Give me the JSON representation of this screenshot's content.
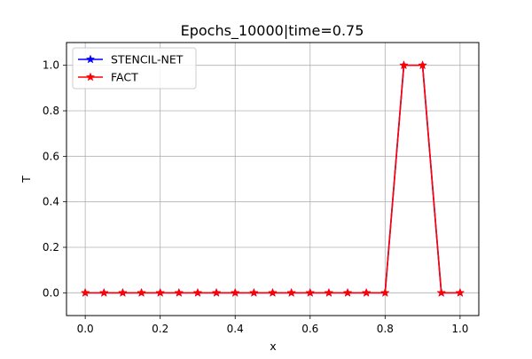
{
  "chart_data": {
    "type": "line",
    "title": "Epochs_10000|time=0.75",
    "xlabel": "x",
    "ylabel": "T",
    "xlim": [
      -0.05,
      1.05
    ],
    "ylim": [
      -0.1,
      1.1
    ],
    "xticks": [
      0.0,
      0.2,
      0.4,
      0.6,
      0.8,
      1.0
    ],
    "xtick_labels": [
      "0.0",
      "0.2",
      "0.4",
      "0.6",
      "0.8",
      "1.0"
    ],
    "yticks": [
      0.0,
      0.2,
      0.4,
      0.6,
      0.8,
      1.0
    ],
    "ytick_labels": [
      "0.0",
      "0.2",
      "0.4",
      "0.6",
      "0.8",
      "1.0"
    ],
    "grid": true,
    "legend_position": "top-left",
    "x": [
      0.0,
      0.05,
      0.1,
      0.15,
      0.2,
      0.25,
      0.3,
      0.35,
      0.4,
      0.45,
      0.5,
      0.55,
      0.6,
      0.65,
      0.7,
      0.75,
      0.8,
      0.85,
      0.9,
      0.95,
      1.0
    ],
    "series": [
      {
        "name": "STENCIL-NET",
        "color": "#0000ff",
        "marker": "star",
        "values": [
          0,
          0,
          0,
          0,
          0,
          0,
          0,
          0,
          0,
          0,
          0,
          0,
          0,
          0,
          0,
          0,
          0,
          1.0,
          1.0,
          0,
          0
        ]
      },
      {
        "name": "FACT",
        "color": "#ff0000",
        "marker": "star",
        "values": [
          0,
          0,
          0,
          0,
          0,
          0,
          0,
          0,
          0,
          0,
          0,
          0,
          0,
          0,
          0,
          0,
          0,
          1.0,
          1.0,
          0,
          0
        ]
      }
    ]
  }
}
